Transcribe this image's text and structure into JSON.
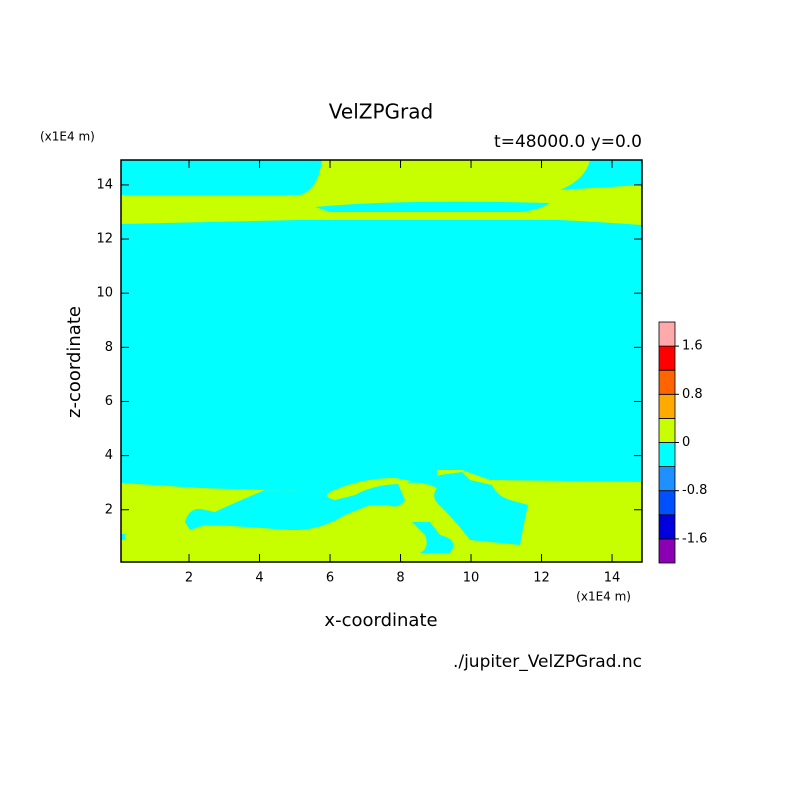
{
  "chart_data": {
    "type": "contour",
    "title": "VelZPGrad",
    "subtitle": "t=48000.0 y=0.0",
    "x_label": "x-coordinate",
    "y_label": "z-coordinate",
    "x_units": "(x1E4 m)",
    "y_units": "(x1E4 m)",
    "source": "./jupiter_VelZPGrad.nc",
    "xlim": [
      0.07,
      14.85
    ],
    "ylim": [
      0.07,
      14.92
    ],
    "xticks": [
      2,
      4,
      6,
      8,
      10,
      12,
      14
    ],
    "yticks": [
      2,
      4,
      6,
      8,
      10,
      12,
      14
    ],
    "colorbar": {
      "lim": [
        -2,
        2
      ],
      "levels": [
        -2,
        -1.6,
        -1.2,
        -0.8,
        -0.4,
        0,
        0.4,
        0.8,
        1.2,
        1.6,
        2
      ],
      "colors": [
        "#8c00b4",
        "#0000dc",
        "#0050ff",
        "#1e90ff",
        "#00ffff",
        "#c8ff00",
        "#ffaa00",
        "#ff6400",
        "#ff0000",
        "#ffaaaa"
      ],
      "ticks": [
        -1.6,
        -0.8,
        0,
        0.8,
        1.6
      ]
    }
  }
}
